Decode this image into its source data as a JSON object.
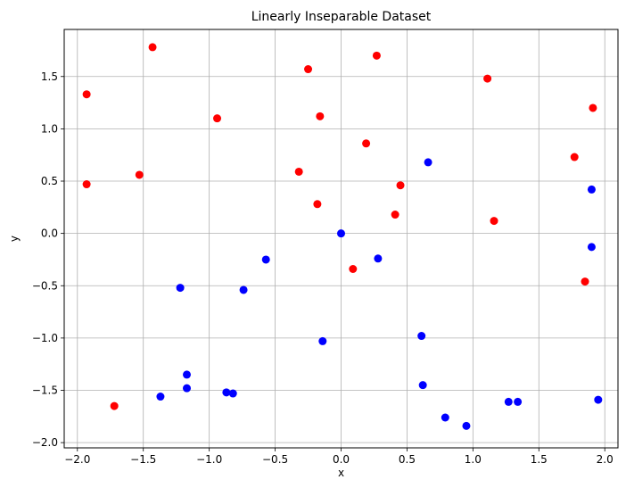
{
  "chart_data": {
    "type": "scatter",
    "title": "Linearly Inseparable Dataset",
    "xlabel": "x",
    "ylabel": "y",
    "xlim": [
      -2.1,
      2.1
    ],
    "ylim": [
      -2.05,
      1.95
    ],
    "xticks": [
      -2.0,
      -1.5,
      -1.0,
      -0.5,
      0.0,
      0.5,
      1.0,
      1.5,
      2.0
    ],
    "xtick_labels": [
      "−2.0",
      "−1.5",
      "−1.0",
      "−0.5",
      "0.0",
      "0.5",
      "1.0",
      "1.5",
      "2.0"
    ],
    "yticks": [
      -2.0,
      -1.5,
      -1.0,
      -0.5,
      0.0,
      0.5,
      1.0,
      1.5
    ],
    "ytick_labels": [
      "−2.0",
      "−1.5",
      "−1.0",
      "−0.5",
      "0.0",
      "0.5",
      "1.0",
      "1.5"
    ],
    "grid": true,
    "series": [
      {
        "color": "#ff0000",
        "points": [
          [
            -1.43,
            1.78
          ],
          [
            -1.93,
            1.33
          ],
          [
            -0.94,
            1.1
          ],
          [
            -1.93,
            0.47
          ],
          [
            -1.53,
            0.56
          ],
          [
            -1.72,
            -1.65
          ],
          [
            -0.25,
            1.57
          ],
          [
            0.27,
            1.7
          ],
          [
            -0.16,
            1.12
          ],
          [
            0.19,
            0.86
          ],
          [
            -0.32,
            0.59
          ],
          [
            -0.18,
            0.28
          ],
          [
            0.45,
            0.46
          ],
          [
            0.41,
            0.18
          ],
          [
            0.09,
            -0.34
          ],
          [
            1.11,
            1.48
          ],
          [
            1.91,
            1.2
          ],
          [
            1.77,
            0.73
          ],
          [
            1.16,
            0.12
          ],
          [
            1.85,
            -0.46
          ]
        ]
      },
      {
        "color": "#0000ff",
        "points": [
          [
            0.0,
            0.0
          ],
          [
            0.66,
            0.68
          ],
          [
            0.28,
            -0.24
          ],
          [
            -0.57,
            -0.25
          ],
          [
            -0.74,
            -0.54
          ],
          [
            -1.22,
            -0.52
          ],
          [
            -0.14,
            -1.03
          ],
          [
            0.61,
            -0.98
          ],
          [
            -1.17,
            -1.35
          ],
          [
            -1.17,
            -1.48
          ],
          [
            -1.37,
            -1.56
          ],
          [
            -0.87,
            -1.52
          ],
          [
            -0.82,
            -1.53
          ],
          [
            0.62,
            -1.45
          ],
          [
            0.79,
            -1.76
          ],
          [
            0.95,
            -1.84
          ],
          [
            1.27,
            -1.61
          ],
          [
            1.34,
            -1.61
          ],
          [
            1.95,
            -1.59
          ],
          [
            1.9,
            0.42
          ],
          [
            1.9,
            -0.13
          ]
        ]
      }
    ]
  }
}
